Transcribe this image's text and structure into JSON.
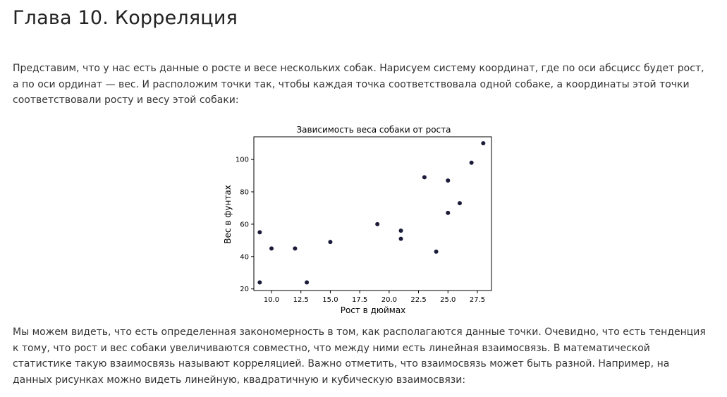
{
  "heading": "Глава 10. Корреляция",
  "paragraph1": "Представим, что у нас есть данные о росте и весе нескольких собак. Нарисуем систему координат, где по оси абсцисс будет рост, а по оси ординат — вес. И расположим точки так, чтобы каждая точка соответствовала одной собаке, а координаты этой точки соответствовали росту и весу этой собаки:",
  "paragraph2": "Мы можем видеть, что есть определенная закономерность в том, как располагаются данные точки. Очевидно, что есть тенденция к тому, что рост и вес собаки увеличиваются совместно, что между ними есть линейная взаимосвязь. В математической статистике такую взаимосвязь называют корреляцией. Важно отметить, что взаимосвязь может быть разной. Например, на данных рисунках можно видеть линейную, квадратичную и кубическую взаимосвязи:",
  "chart_data": {
    "type": "scatter",
    "title": "Зависимость веса собаки от роста",
    "xlabel": "Рост в дюймах",
    "ylabel": "Вес в фунтах",
    "xlim": [
      8.5,
      28.7
    ],
    "ylim": [
      19,
      114
    ],
    "xticks": [
      10.0,
      12.5,
      15.0,
      17.5,
      20.0,
      22.5,
      25.0,
      27.5
    ],
    "xtick_labels": [
      "10.0",
      "12.5",
      "15.0",
      "17.5",
      "20.0",
      "22.5",
      "25.0",
      "27.5"
    ],
    "yticks": [
      20,
      40,
      60,
      80,
      100
    ],
    "ytick_labels": [
      "20",
      "40",
      "60",
      "80",
      "100"
    ],
    "grid": false,
    "point_color": "#1b1b3a",
    "points": [
      {
        "x": 9,
        "y": 24
      },
      {
        "x": 9,
        "y": 55
      },
      {
        "x": 10,
        "y": 45
      },
      {
        "x": 12,
        "y": 45
      },
      {
        "x": 13,
        "y": 24
      },
      {
        "x": 15,
        "y": 49
      },
      {
        "x": 19,
        "y": 60
      },
      {
        "x": 21,
        "y": 56
      },
      {
        "x": 21,
        "y": 51
      },
      {
        "x": 23,
        "y": 89
      },
      {
        "x": 24,
        "y": 43
      },
      {
        "x": 25,
        "y": 87
      },
      {
        "x": 25,
        "y": 67
      },
      {
        "x": 26,
        "y": 73
      },
      {
        "x": 27,
        "y": 98
      },
      {
        "x": 28,
        "y": 110
      }
    ]
  }
}
